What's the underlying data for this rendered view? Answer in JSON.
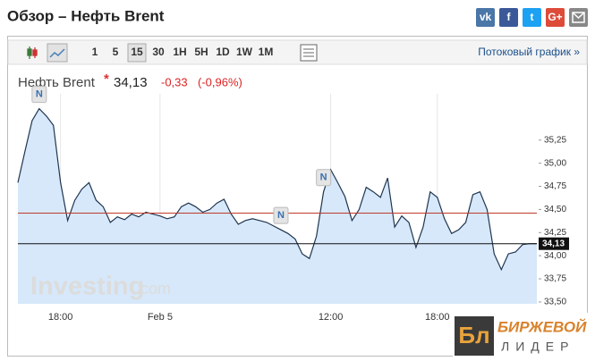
{
  "header": {
    "title": "Обзор – Нефть Brent",
    "share": [
      "vk",
      "f",
      "t",
      "G+"
    ]
  },
  "toolbar": {
    "intervals": [
      "1",
      "5",
      "15",
      "30",
      "1H",
      "5H",
      "1D",
      "1W",
      "1M"
    ],
    "selected": "15",
    "stream_link": "Потоковый график »"
  },
  "quote": {
    "name": "Нефть Brent",
    "star": "*",
    "price": "34,13",
    "change": "-0,33",
    "change_pct": "(-0,96%)"
  },
  "branding": {
    "watermark": "Investing",
    "watermark_suffix": ".com",
    "logo_mark": "Бл",
    "logo_line1": "БИРЖЕВОЙ",
    "logo_line2": "ЛИДЕР"
  },
  "chart_data": {
    "type": "area",
    "categories": [
      null,
      null,
      null,
      null,
      null,
      null,
      "18:00",
      null,
      null,
      null,
      null,
      null,
      null,
      null,
      null,
      null,
      null,
      null,
      null,
      null,
      "Feb 5",
      null,
      null,
      null,
      null,
      null,
      null,
      null,
      null,
      null,
      null,
      null,
      null,
      null,
      null,
      null,
      null,
      null,
      null,
      null,
      null,
      null,
      null,
      null,
      "12:00",
      null,
      null,
      null,
      null,
      null,
      null,
      null,
      null,
      null,
      null,
      null,
      null,
      null,
      null,
      "18:00",
      null,
      null,
      null,
      null,
      null,
      null,
      null,
      null,
      null,
      null,
      null,
      null,
      null,
      null
    ],
    "series": [
      {
        "color": "#1f3550",
        "fill": "#d6e8fa",
        "values": [
          34.79,
          35.13,
          35.46,
          35.59,
          35.51,
          35.41,
          34.79,
          34.38,
          34.6,
          34.72,
          34.79,
          34.6,
          34.53,
          34.36,
          34.42,
          34.39,
          34.45,
          34.42,
          34.47,
          34.45,
          34.43,
          34.4,
          34.42,
          34.53,
          34.57,
          34.53,
          34.47,
          34.5,
          34.57,
          34.61,
          34.45,
          34.34,
          34.38,
          34.4,
          34.38,
          34.36,
          34.32,
          34.28,
          34.24,
          34.18,
          34.02,
          33.97,
          34.21,
          34.69,
          34.93,
          34.79,
          34.64,
          34.38,
          34.5,
          34.74,
          34.69,
          34.63,
          34.84,
          34.31,
          34.43,
          34.36,
          34.09,
          34.31,
          34.69,
          34.63,
          34.4,
          34.24,
          34.28,
          34.36,
          34.66,
          34.69,
          34.5,
          34.02,
          33.85,
          34.02,
          34.04,
          34.12,
          34.13,
          34.13
        ]
      }
    ],
    "ylim": [
      33.48,
      35.75
    ],
    "yticks": [
      {
        "value": 33.5,
        "label": "33,50"
      },
      {
        "value": 33.75,
        "label": "33,75"
      },
      {
        "value": 34,
        "label": "34,00"
      },
      {
        "value": 34.25,
        "label": "34,25"
      },
      {
        "value": 34.5,
        "label": "34,50"
      },
      {
        "value": 34.75,
        "label": "34,75"
      },
      {
        "value": 35,
        "label": "35,00"
      },
      {
        "value": 35.25,
        "label": "35,25"
      }
    ],
    "reference_lines": [
      {
        "value": 34.46,
        "color": "#c0392b"
      }
    ],
    "last_price": {
      "value": 34.13,
      "label": "34,13",
      "color": "#111111"
    },
    "news_markers": [
      {
        "label": "N",
        "index": 3
      },
      {
        "label": "N",
        "index": 37
      },
      {
        "label": "N",
        "index": 43
      }
    ],
    "grid": true
  }
}
